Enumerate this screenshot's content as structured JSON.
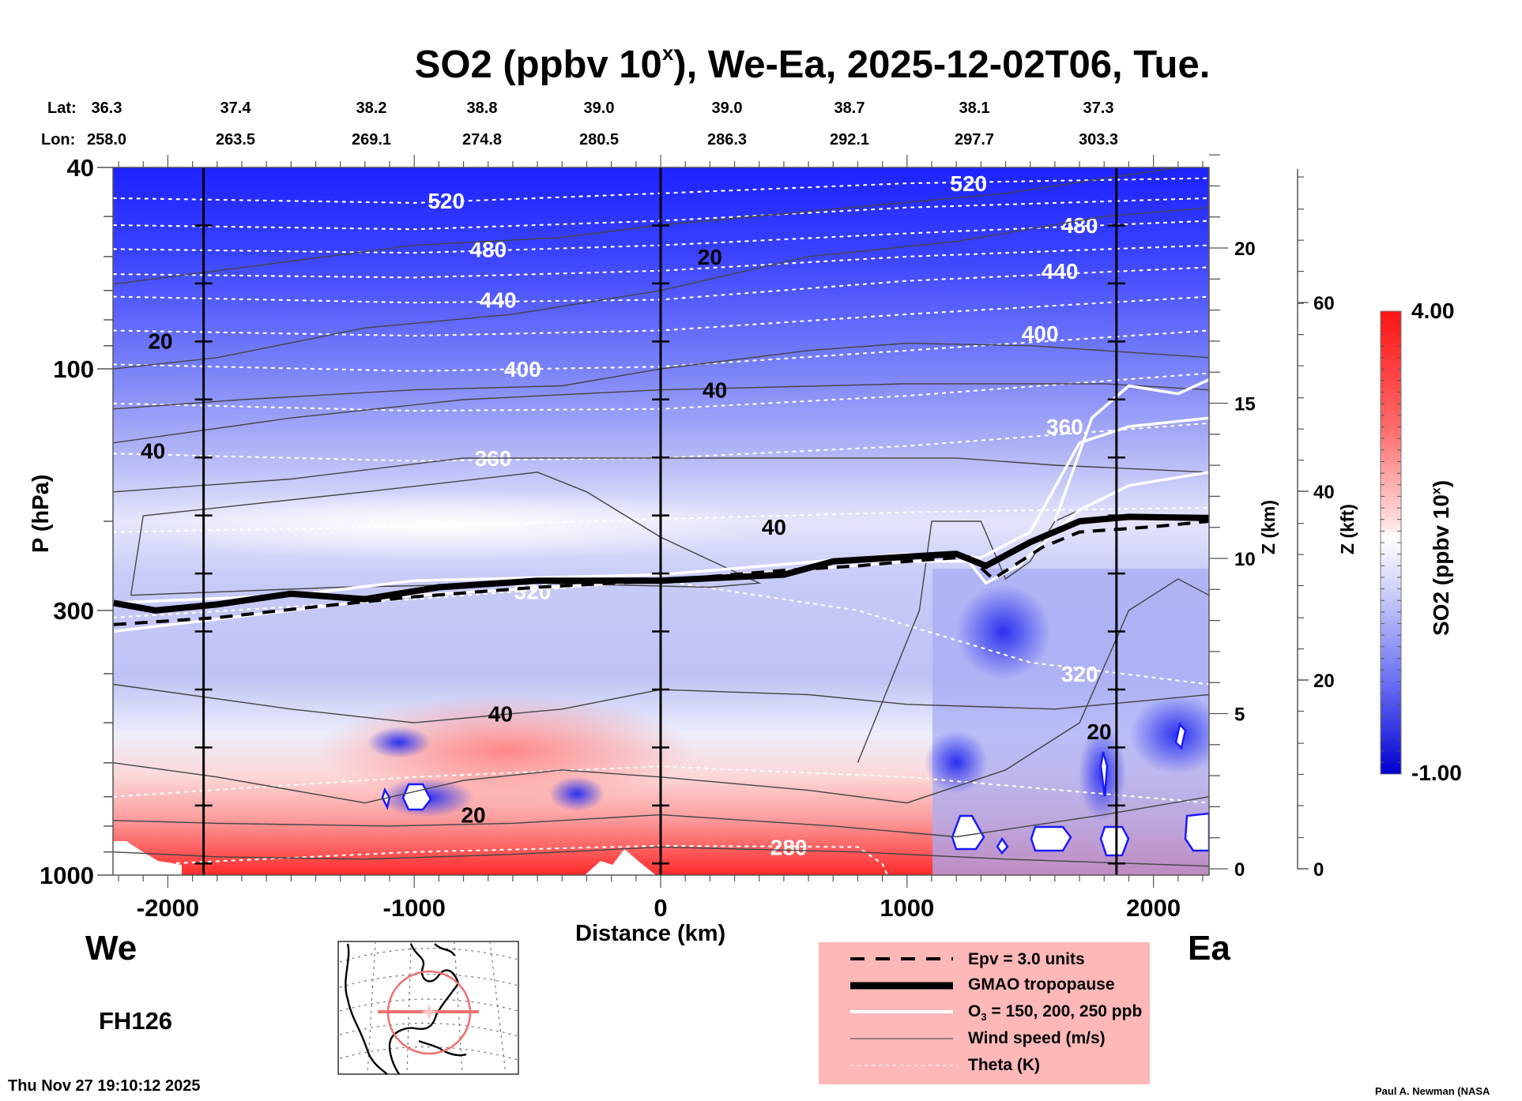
{
  "title": {
    "prefix": "SO2 (ppbv 10",
    "sup": "x",
    "suffix": "), We-Ea, 2025-12-02T06, Tue."
  },
  "header": {
    "lat_label": "Lat:",
    "lon_label": "Lon:",
    "lat": [
      "36.3",
      "37.4",
      "38.2",
      "38.8",
      "39.0",
      "39.0",
      "38.7",
      "38.1",
      "37.3"
    ],
    "lon": [
      "258.0",
      "263.5",
      "269.1",
      "274.8",
      "280.5",
      "286.3",
      "292.1",
      "297.7",
      "303.3"
    ]
  },
  "labels": {
    "west": "We",
    "east": "Ea",
    "forecast_hour": "FH126",
    "timestamp": "Thu Nov 27 19:10:12 2025",
    "credit": "Paul A. Newman (NASA"
  },
  "legend": {
    "items": [
      {
        "style": "dashed-thick",
        "text": "Epv = 3.0 units"
      },
      {
        "style": "solid-heavy",
        "text": "GMAO tropopause"
      },
      {
        "style": "solid-white",
        "text_pre": "O",
        "text_sub": "3",
        "text": " = 150, 200, 250 ppb"
      },
      {
        "style": "solid-thin",
        "text": "Wind speed (m/s)"
      },
      {
        "style": "dotted-white",
        "text": "Theta (K)"
      }
    ]
  },
  "colors": {
    "red_max": "#ff1414",
    "white_mid": "#ffffff",
    "blue_min": "#0000d8",
    "legend_bg": "#ffb8b8",
    "map_track": "#f07070"
  },
  "chart_data": {
    "type": "heatmap",
    "title": "SO2 (ppbv 10^x), We-Ea, 2025-12-02T06, Tue.",
    "xlabel": "Distance (km)",
    "ylabel": "P (hPa)",
    "y2label": "Z (km)",
    "y3label": "Z (kft)",
    "xlim": [
      -2220,
      2226
    ],
    "ylim": [
      1000,
      40
    ],
    "yscale": "log",
    "x_ticks": [
      -2000,
      -1000,
      0,
      1000,
      2000
    ],
    "x_tick_labels": [
      "-2000",
      "-1000",
      "0",
      "1000",
      "2000"
    ],
    "y_ticks": [
      40,
      100,
      300,
      1000
    ],
    "y_tick_labels": [
      "40",
      "100",
      "300",
      "1000"
    ],
    "z_km_ticks": [
      0,
      5,
      10,
      15,
      20
    ],
    "z_kft_ticks": [
      0,
      20,
      40,
      60
    ],
    "vertical_markers_km": [
      -1855,
      0,
      1850
    ],
    "colorbar": {
      "label": "SO2 (ppbv 10^x)",
      "min": -1.0,
      "max": 4.0,
      "min_label": "-1.00",
      "max_label": "4.00"
    },
    "theta_contours": [
      {
        "value": 520,
        "label": "520",
        "points": [
          [
            -2220,
            46
          ],
          [
            -1000,
            47
          ],
          [
            0,
            45
          ],
          [
            1000,
            43
          ],
          [
            2226,
            42
          ]
        ]
      },
      {
        "value": 500,
        "label": "",
        "points": [
          [
            -2220,
            52
          ],
          [
            -1000,
            53
          ],
          [
            0,
            51
          ],
          [
            1000,
            48
          ],
          [
            2226,
            46
          ]
        ]
      },
      {
        "value": 480,
        "label": "480",
        "points": [
          [
            -2220,
            58
          ],
          [
            -1000,
            59
          ],
          [
            0,
            57
          ],
          [
            1000,
            54
          ],
          [
            2226,
            51
          ]
        ]
      },
      {
        "value": 460,
        "label": "",
        "points": [
          [
            -2220,
            65
          ],
          [
            -1000,
            66
          ],
          [
            0,
            64
          ],
          [
            1000,
            60
          ],
          [
            2226,
            57
          ]
        ]
      },
      {
        "value": 440,
        "label": "440",
        "points": [
          [
            -2220,
            72
          ],
          [
            -1000,
            74
          ],
          [
            0,
            73
          ],
          [
            1000,
            67
          ],
          [
            2226,
            63
          ]
        ]
      },
      {
        "value": 420,
        "label": "",
        "points": [
          [
            -2220,
            84
          ],
          [
            -1000,
            86
          ],
          [
            0,
            84
          ],
          [
            1000,
            78
          ],
          [
            2226,
            72
          ]
        ]
      },
      {
        "value": 400,
        "label": "400",
        "points": [
          [
            -2220,
            98
          ],
          [
            -1000,
            101
          ],
          [
            0,
            99
          ],
          [
            1000,
            92
          ],
          [
            2226,
            84
          ]
        ]
      },
      {
        "value": 380,
        "label": "",
        "points": [
          [
            -2220,
            117
          ],
          [
            -1000,
            121
          ],
          [
            0,
            120
          ],
          [
            1000,
            113
          ],
          [
            2226,
            102
          ]
        ]
      },
      {
        "value": 360,
        "label": "360",
        "points": [
          [
            -2220,
            147
          ],
          [
            -1000,
            152
          ],
          [
            0,
            150
          ],
          [
            1000,
            142
          ],
          [
            2226,
            128
          ]
        ]
      },
      {
        "value": 340,
        "label": "",
        "points": [
          [
            -2220,
            210
          ],
          [
            -1000,
            205
          ],
          [
            0,
            198
          ],
          [
            1000,
            192
          ],
          [
            2226,
            188
          ]
        ]
      },
      {
        "value": 320,
        "label": "320",
        "points": [
          [
            -2220,
            310
          ],
          [
            -1000,
            285
          ],
          [
            0,
            262
          ],
          [
            800,
            300
          ],
          [
            1500,
            380
          ],
          [
            2226,
            420
          ]
        ]
      },
      {
        "value": 300,
        "label": "",
        "points": [
          [
            -2220,
            700
          ],
          [
            -1000,
            640
          ],
          [
            0,
            610
          ],
          [
            1000,
            640
          ],
          [
            2226,
            720
          ]
        ]
      },
      {
        "value": 280,
        "label": "280",
        "points": [
          [
            -2220,
            960
          ],
          [
            -1000,
            900
          ],
          [
            0,
            875
          ],
          [
            800,
            880
          ],
          [
            900,
            950
          ],
          [
            920,
            1000
          ]
        ]
      }
    ],
    "wind_contours": [
      {
        "label": "20",
        "points": [
          [
            -2220,
            100
          ],
          [
            -1800,
            95
          ],
          [
            -1200,
            83
          ],
          [
            -600,
            78
          ],
          [
            0,
            70
          ],
          [
            600,
            60
          ],
          [
            1200,
            56
          ],
          [
            1800,
            50
          ],
          [
            2226,
            48
          ]
        ]
      },
      {
        "label": "20",
        "points": [
          [
            -2220,
            68
          ],
          [
            -1800,
            64
          ],
          [
            -1000,
            57
          ],
          [
            -400,
            55
          ],
          [
            0,
            52
          ],
          [
            1400,
            45
          ],
          [
            2100,
            40
          ]
        ]
      },
      {
        "label": "40",
        "points": [
          [
            -2220,
            140
          ],
          [
            -1500,
            125
          ],
          [
            -800,
            115
          ],
          [
            0,
            110
          ],
          [
            1000,
            107
          ],
          [
            1800,
            107
          ],
          [
            2226,
            110
          ]
        ]
      },
      {
        "label": "40",
        "points": [
          [
            -2220,
            175
          ],
          [
            -1500,
            165
          ],
          [
            -800,
            150
          ],
          [
            0,
            150
          ],
          [
            1200,
            150
          ],
          [
            1600,
            155
          ],
          [
            2226,
            160
          ]
        ]
      },
      {
        "label": "20",
        "points": [
          [
            -2220,
            120
          ],
          [
            -1700,
            115
          ],
          [
            -1000,
            110
          ],
          [
            -400,
            108
          ],
          [
            0,
            100
          ],
          [
            600,
            92
          ],
          [
            1000,
            89
          ],
          [
            1500,
            90
          ],
          [
            2226,
            95
          ]
        ]
      },
      {
        "label": "",
        "points": [
          [
            -2150,
            280
          ],
          [
            -2100,
            195
          ],
          [
            -1200,
            175
          ],
          [
            -500,
            160
          ],
          [
            -300,
            175
          ],
          [
            0,
            215
          ],
          [
            400,
            265
          ],
          [
            200,
            270
          ],
          [
            -500,
            265
          ],
          [
            -1300,
            270
          ],
          [
            -2150,
            280
          ]
        ]
      },
      {
        "label": "40",
        "points": [
          [
            -2220,
            420
          ],
          [
            -1500,
            470
          ],
          [
            -1000,
            500
          ],
          [
            -400,
            470
          ],
          [
            0,
            430
          ],
          [
            600,
            440
          ],
          [
            1000,
            460
          ],
          [
            1600,
            470
          ],
          [
            2226,
            440
          ]
        ]
      },
      {
        "label": "",
        "points": [
          [
            800,
            600
          ],
          [
            1050,
            300
          ],
          [
            1100,
            200
          ],
          [
            1300,
            200
          ],
          [
            1400,
            260
          ],
          [
            1500,
            240
          ],
          [
            1600,
            200
          ],
          [
            1700,
            190
          ]
        ]
      },
      {
        "label": "20",
        "points": [
          [
            -2220,
            600
          ],
          [
            -1800,
            640
          ],
          [
            -1200,
            720
          ],
          [
            -800,
            650
          ],
          [
            -400,
            620
          ],
          [
            0,
            640
          ],
          [
            600,
            680
          ],
          [
            1000,
            720
          ],
          [
            1400,
            620
          ],
          [
            1700,
            500
          ],
          [
            1900,
            300
          ],
          [
            2100,
            260
          ],
          [
            2226,
            280
          ]
        ]
      },
      {
        "label": "20",
        "points": [
          [
            -2220,
            780
          ],
          [
            -1800,
            790
          ],
          [
            -1100,
            800
          ],
          [
            -600,
            790
          ],
          [
            0,
            760
          ],
          [
            700,
            800
          ],
          [
            1200,
            840
          ],
          [
            1800,
            760
          ],
          [
            2226,
            700
          ]
        ]
      },
      {
        "label": "",
        "points": [
          [
            -2220,
            900
          ],
          [
            -1800,
            920
          ],
          [
            -1200,
            930
          ],
          [
            -600,
            910
          ],
          [
            0,
            880
          ],
          [
            800,
            900
          ],
          [
            1400,
            930
          ],
          [
            2226,
            960
          ]
        ]
      }
    ],
    "tropopause_gmao_points": [
      [
        -2220,
        290
      ],
      [
        -2050,
        300
      ],
      [
        -1800,
        292
      ],
      [
        -1500,
        278
      ],
      [
        -1200,
        285
      ],
      [
        -900,
        270
      ],
      [
        -500,
        262
      ],
      [
        0,
        262
      ],
      [
        500,
        255
      ],
      [
        700,
        240
      ],
      [
        1000,
        235
      ],
      [
        1200,
        232
      ],
      [
        1320,
        245
      ],
      [
        1500,
        220
      ],
      [
        1700,
        200
      ],
      [
        1900,
        196
      ],
      [
        2226,
        197
      ]
    ],
    "epv_points": [
      [
        -2220,
        320
      ],
      [
        -1800,
        310
      ],
      [
        -1400,
        295
      ],
      [
        -1000,
        282
      ],
      [
        -500,
        270
      ],
      [
        0,
        262
      ],
      [
        500,
        250
      ],
      [
        800,
        245
      ],
      [
        1000,
        240
      ],
      [
        1250,
        235
      ],
      [
        1350,
        260
      ],
      [
        1550,
        225
      ],
      [
        1700,
        210
      ],
      [
        2000,
        205
      ],
      [
        2226,
        200
      ]
    ],
    "ozone_contours": [
      {
        "points": [
          [
            -2220,
            330
          ],
          [
            -1500,
            300
          ],
          [
            -1000,
            280
          ],
          [
            0,
            262
          ],
          [
            1000,
            240
          ],
          [
            1250,
            240
          ],
          [
            1320,
            265
          ],
          [
            1450,
            245
          ],
          [
            1700,
            190
          ],
          [
            1900,
            170
          ],
          [
            2226,
            160
          ]
        ]
      },
      {
        "points": [
          [
            -2220,
            290
          ],
          [
            -1500,
            280
          ],
          [
            -1000,
            262
          ],
          [
            0,
            255
          ],
          [
            1000,
            232
          ],
          [
            1300,
            236
          ],
          [
            1500,
            210
          ],
          [
            1700,
            140
          ],
          [
            1900,
            130
          ],
          [
            2226,
            125
          ]
        ]
      },
      {
        "points": [
          [
            1600,
            200
          ],
          [
            1750,
            125
          ],
          [
            1900,
            108
          ],
          [
            2100,
            112
          ],
          [
            2226,
            105
          ]
        ]
      }
    ]
  }
}
